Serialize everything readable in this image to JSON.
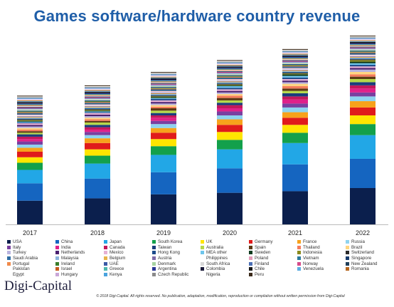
{
  "chart_data": {
    "type": "bar",
    "stacked": true,
    "title": "Games software/hardware country revenue",
    "xlabel": "",
    "ylabel": "",
    "categories": [
      "2017",
      "2018",
      "2019",
      "2020",
      "2021",
      "2022"
    ],
    "grid": false,
    "legend_position": "bottom",
    "series": [
      {
        "name": "USA",
        "color": "#0b1f4d",
        "values": [
          30,
          33,
          38,
          40,
          42,
          46
        ]
      },
      {
        "name": "China",
        "color": "#1565c0",
        "values": [
          22,
          25,
          28,
          31,
          34,
          37
        ]
      },
      {
        "name": "Japan",
        "color": "#22a7e6",
        "values": [
          17,
          19,
          22,
          24,
          27,
          30
        ]
      },
      {
        "name": "South Korea",
        "color": "#13a04b",
        "values": [
          9,
          10,
          11,
          12,
          13,
          14
        ]
      },
      {
        "name": "UK",
        "color": "#ffe500",
        "values": [
          7,
          8,
          9,
          10,
          10,
          11
        ]
      },
      {
        "name": "Germany",
        "color": "#e01b1b",
        "values": [
          7,
          8,
          8,
          9,
          9,
          10
        ]
      },
      {
        "name": "France",
        "color": "#f7a21b",
        "values": [
          5,
          6,
          6,
          7,
          7,
          8
        ]
      },
      {
        "name": "Russia",
        "color": "#8fd3ef",
        "values": [
          4,
          4,
          5,
          5,
          6,
          6
        ]
      },
      {
        "name": "Italy",
        "color": "#7a3fa0",
        "values": [
          4,
          4,
          4,
          5,
          5,
          5
        ]
      },
      {
        "name": "India",
        "color": "#e0218a",
        "values": [
          3,
          3,
          4,
          4,
          5,
          5
        ]
      },
      {
        "name": "Canada",
        "color": "#c2185b",
        "values": [
          3,
          3,
          3,
          4,
          4,
          4
        ]
      },
      {
        "name": "Taiwan",
        "color": "#1a3d7c",
        "values": [
          3,
          3,
          3,
          3,
          4,
          4
        ]
      },
      {
        "name": "Australia",
        "color": "#b6d84a",
        "values": [
          2,
          3,
          3,
          3,
          3,
          4
        ]
      },
      {
        "name": "Spain",
        "color": "#5b3a14",
        "values": [
          2,
          2,
          3,
          3,
          3,
          3
        ]
      },
      {
        "name": "Thailand",
        "color": "#f47c5c",
        "values": [
          2,
          2,
          2,
          3,
          3,
          3
        ]
      },
      {
        "name": "Brazil",
        "color": "#ffd580",
        "values": [
          2,
          2,
          2,
          2,
          3,
          3
        ]
      },
      {
        "name": "Turkey",
        "color": "#b9b3df",
        "values": [
          2,
          2,
          2,
          2,
          2,
          3
        ]
      },
      {
        "name": "Netherlands",
        "color": "#4a2070",
        "values": [
          2,
          2,
          2,
          2,
          2,
          2
        ]
      },
      {
        "name": "Mexico",
        "color": "#e6b0d4",
        "values": [
          2,
          2,
          2,
          2,
          2,
          2
        ]
      },
      {
        "name": "Hong Kong",
        "color": "#1d4c8c",
        "values": [
          1,
          1,
          2,
          2,
          2,
          2
        ]
      },
      {
        "name": "MEA other",
        "color": "#6ec6ec",
        "values": [
          1,
          1,
          1,
          2,
          2,
          2
        ]
      },
      {
        "name": "Sweden",
        "color": "#0d3b1e",
        "values": [
          1,
          1,
          1,
          1,
          2,
          2
        ]
      },
      {
        "name": "Indonesia",
        "color": "#8c8a1c",
        "values": [
          1,
          1,
          1,
          1,
          1,
          2
        ]
      },
      {
        "name": "Switzerland",
        "color": "#2b2b2b",
        "values": [
          1,
          1,
          1,
          1,
          1,
          1
        ]
      },
      {
        "name": "Saudi Arabia",
        "color": "#2e6da4",
        "values": [
          1,
          1,
          1,
          1,
          1,
          1
        ]
      },
      {
        "name": "Malaysia",
        "color": "#8cb4dc",
        "values": [
          1,
          1,
          1,
          1,
          1,
          1
        ]
      },
      {
        "name": "Belgium",
        "color": "#e8b34a",
        "values": [
          1,
          1,
          1,
          1,
          1,
          1
        ]
      },
      {
        "name": "Austria",
        "color": "#7e6aa8",
        "values": [
          1,
          1,
          1,
          1,
          1,
          1
        ]
      },
      {
        "name": "Philippines",
        "color": "#ffffff",
        "values": [
          1,
          1,
          1,
          1,
          1,
          1
        ]
      },
      {
        "name": "Poland",
        "color": "#e39bb8",
        "values": [
          1,
          1,
          1,
          1,
          1,
          1
        ]
      },
      {
        "name": "Vietnam",
        "color": "#2a7a9c",
        "values": [
          1,
          1,
          1,
          1,
          1,
          1
        ]
      },
      {
        "name": "Singapore",
        "color": "#163a6b",
        "values": [
          1,
          1,
          1,
          1,
          1,
          1
        ]
      },
      {
        "name": "Portugal",
        "color": "#f08a4b",
        "values": [
          1,
          1,
          1,
          1,
          1,
          1
        ]
      },
      {
        "name": "Ireland",
        "color": "#3a7d2a",
        "values": [
          1,
          1,
          1,
          1,
          1,
          1
        ]
      },
      {
        "name": "UAE",
        "color": "#3c5aa6",
        "values": [
          1,
          1,
          1,
          1,
          1,
          1
        ]
      },
      {
        "name": "Denmark",
        "color": "#a6d3a0",
        "values": [
          1,
          1,
          1,
          1,
          1,
          1
        ]
      },
      {
        "name": "South Africa",
        "color": "#d9d9d9",
        "values": [
          1,
          1,
          1,
          1,
          1,
          1
        ]
      },
      {
        "name": "Finland",
        "color": "#4b6fb5",
        "values": [
          1,
          1,
          1,
          1,
          1,
          1
        ]
      },
      {
        "name": "Norway",
        "color": "#d64a8a",
        "values": [
          1,
          1,
          1,
          1,
          1,
          1
        ]
      },
      {
        "name": "New Zealand",
        "color": "#1f3f5a",
        "values": [
          1,
          1,
          1,
          1,
          1,
          1
        ]
      },
      {
        "name": "Pakistan",
        "color": "#ffffff",
        "values": [
          1,
          1,
          1,
          1,
          1,
          1
        ]
      },
      {
        "name": "Israel",
        "color": "#c65a1e",
        "values": [
          1,
          1,
          1,
          1,
          1,
          1
        ]
      },
      {
        "name": "Greece",
        "color": "#4db6ac",
        "values": [
          1,
          1,
          1,
          1,
          1,
          1
        ]
      },
      {
        "name": "Argentina",
        "color": "#283593",
        "values": [
          1,
          1,
          1,
          1,
          1,
          1
        ]
      },
      {
        "name": "Colombia",
        "color": "#1b1b3a",
        "values": [
          1,
          1,
          1,
          1,
          1,
          1
        ]
      },
      {
        "name": "Chile",
        "color": "#1a1a1a",
        "values": [
          1,
          1,
          1,
          1,
          1,
          1
        ]
      },
      {
        "name": "Venezuela",
        "color": "#5dade2",
        "values": [
          1,
          1,
          1,
          1,
          1,
          1
        ]
      },
      {
        "name": "Romania",
        "color": "#b5651d",
        "values": [
          1,
          1,
          1,
          1,
          1,
          1
        ]
      },
      {
        "name": "Egypt",
        "color": "#ffffff",
        "values": [
          1,
          1,
          1,
          1,
          1,
          1
        ]
      },
      {
        "name": "Hungary",
        "color": "#c9a6d8",
        "values": [
          1,
          1,
          1,
          1,
          1,
          1
        ]
      },
      {
        "name": "Kenya",
        "color": "#4aa3df",
        "values": [
          1,
          1,
          1,
          1,
          1,
          1
        ]
      },
      {
        "name": "Czech Republic",
        "color": "#8a8a8a",
        "values": [
          1,
          1,
          1,
          1,
          1,
          1
        ]
      },
      {
        "name": "Nigeria",
        "color": "#ffffff",
        "values": [
          1,
          1,
          1,
          1,
          1,
          1
        ]
      },
      {
        "name": "Peru",
        "color": "#3b2a1a",
        "values": [
          1,
          1,
          1,
          1,
          1,
          1
        ]
      }
    ]
  },
  "brand": "Digi-Capital",
  "copyright": "© 2018 Digi-Capital. All rights reserved. No publication, adaptation, modification, reproduction or compilation without written permission from Digi-Capital"
}
